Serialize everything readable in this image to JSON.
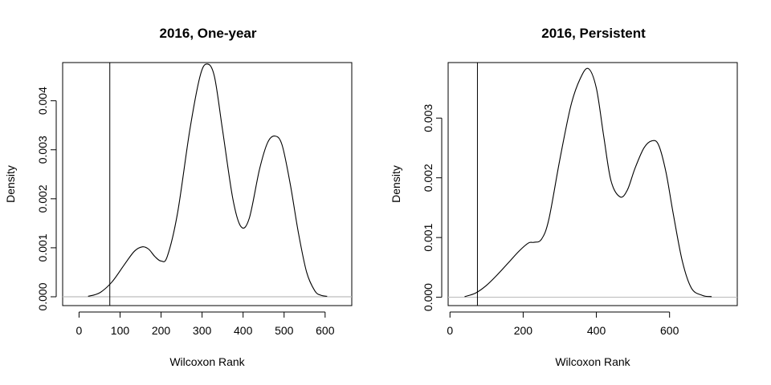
{
  "chart_data": [
    {
      "type": "line",
      "title": "2016, One-year",
      "xlabel": "Wilcoxon Rank",
      "ylabel": "Density",
      "xlim": [
        -40,
        665
      ],
      "ylim": [
        -0.00018,
        0.00478
      ],
      "xticks": [
        0,
        100,
        200,
        300,
        400,
        500,
        600
      ],
      "xtick_labels": [
        "0",
        "100",
        "200",
        "300",
        "400",
        "500",
        "600"
      ],
      "yticks": [
        0,
        0.001,
        0.002,
        0.003,
        0.004
      ],
      "ytick_labels": [
        "0.000",
        "0.001",
        "0.002",
        "0.003",
        "0.004"
      ],
      "vline": 75,
      "baseline": 0,
      "grid": false,
      "series": [
        {
          "x": [
            22,
            50,
            80,
            110,
            135,
            155,
            170,
            185,
            200,
            215,
            240,
            270,
            295,
            312,
            330,
            350,
            375,
            395,
            415,
            440,
            460,
            478,
            495,
            515,
            535,
            555,
            575,
            590,
            605
          ],
          "y": [
            1e-05,
            8e-05,
            0.0003,
            0.00065,
            0.00093,
            0.00102,
            0.00097,
            0.00082,
            0.00073,
            0.00082,
            0.0017,
            0.0034,
            0.0045,
            0.00475,
            0.0045,
            0.0034,
            0.002,
            0.00143,
            0.0016,
            0.0026,
            0.00315,
            0.00328,
            0.0031,
            0.0023,
            0.0013,
            0.0005,
            0.00012,
            3e-05,
            1e-05
          ]
        }
      ]
    },
    {
      "type": "line",
      "title": "2016, Persistent",
      "xlabel": "Wilcoxon Rank",
      "ylabel": "Density",
      "xlim": [
        -5,
        785
      ],
      "ylim": [
        -0.00014,
        0.00393
      ],
      "xticks": [
        0,
        200,
        400,
        600
      ],
      "xtick_labels": [
        "0",
        "200",
        "400",
        "600"
      ],
      "yticks": [
        0,
        0.001,
        0.002,
        0.003
      ],
      "ytick_labels": [
        "0.000",
        "0.001",
        "0.002",
        "0.003"
      ],
      "vline": 75,
      "baseline": 0,
      "grid": false,
      "series": [
        {
          "x": [
            40,
            70,
            100,
            130,
            160,
            190,
            215,
            230,
            250,
            270,
            300,
            330,
            355,
            378,
            400,
            420,
            440,
            465,
            485,
            505,
            530,
            552,
            570,
            590,
            610,
            635,
            660,
            690,
            715
          ],
          "y": [
            1e-05,
            7e-05,
            0.0002,
            0.00038,
            0.00058,
            0.00078,
            0.00091,
            0.00092,
            0.00097,
            0.0013,
            0.0023,
            0.0032,
            0.00365,
            0.00383,
            0.0035,
            0.0027,
            0.00195,
            0.00168,
            0.0018,
            0.00215,
            0.0025,
            0.00262,
            0.00255,
            0.0021,
            0.0014,
            0.0006,
            0.00015,
            3e-05,
            1e-05
          ]
        }
      ]
    }
  ]
}
